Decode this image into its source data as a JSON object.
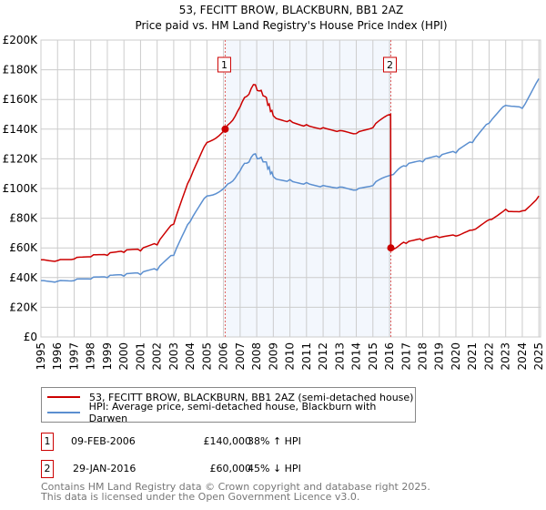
{
  "title": "53, FECITT BROW, BLACKBURN, BB1 2AZ",
  "subtitle": "Price paid vs. HM Land Registry's House Price Index (HPI)",
  "chart_data": {
    "type": "line",
    "title": "53, FECITT BROW, BLACKBURN, BB1 2AZ",
    "subtitle": "Price paid vs. HM Land Registry's House Price Index (HPI)",
    "xlim": [
      1995,
      2025.1
    ],
    "ylim": [
      0,
      200000
    ],
    "y_ticks": [
      {
        "v": 0,
        "l": "£0"
      },
      {
        "v": 20000,
        "l": "£20K"
      },
      {
        "v": 40000,
        "l": "£40K"
      },
      {
        "v": 60000,
        "l": "£60K"
      },
      {
        "v": 80000,
        "l": "£80K"
      },
      {
        "v": 100000,
        "l": "£100K"
      },
      {
        "v": 120000,
        "l": "£120K"
      },
      {
        "v": 140000,
        "l": "£140K"
      },
      {
        "v": 160000,
        "l": "£160K"
      },
      {
        "v": 180000,
        "l": "£180K"
      },
      {
        "v": 200000,
        "l": "£200K"
      }
    ],
    "x_ticks": [
      "1995",
      "1996",
      "1997",
      "1998",
      "1999",
      "2000",
      "2001",
      "2002",
      "2003",
      "2004",
      "2005",
      "2006",
      "2007",
      "2008",
      "2009",
      "2010",
      "2011",
      "2012",
      "2013",
      "2014",
      "2015",
      "2016",
      "2017",
      "2018",
      "2019",
      "2020",
      "2021",
      "2022",
      "2023",
      "2024",
      "2025"
    ],
    "grid": true,
    "series": [
      {
        "name": "53, FECITT BROW, BLACKBURN, BB1 2AZ (semi-detached house)",
        "color": "#cc0000",
        "x": [
          1995,
          1996,
          1997,
          1998,
          1999,
          2000,
          2001,
          2002,
          2003,
          2004,
          2005,
          2006.1,
          2007,
          2007.8,
          2008.5,
          2009,
          2010,
          2011,
          2012,
          2013,
          2014,
          2015,
          2016.07,
          2016.08,
          2017,
          2018,
          2019,
          2020,
          2021,
          2022,
          2023,
          2024,
          2025
        ],
        "y": [
          52000,
          51500,
          52500,
          54000,
          55000,
          57000,
          58000,
          62000,
          76000,
          107000,
          131000,
          140000,
          155000,
          170000,
          162000,
          149000,
          146000,
          143000,
          141000,
          139000,
          137000,
          141000,
          150000,
          60000,
          63000,
          65000,
          67000,
          68000,
          72000,
          79000,
          86000,
          85000,
          95000
        ]
      },
      {
        "name": "HPI: Average price, semi-detached house, Blackburn with Darwen",
        "color": "#5b8fd0",
        "x": [
          1995,
          1996,
          1997,
          1998,
          1999,
          2000,
          2001,
          2002,
          2003,
          2004,
          2005,
          2006.1,
          2007,
          2007.8,
          2008.5,
          2009,
          2010,
          2011,
          2012,
          2013,
          2014,
          2015,
          2016.08,
          2017,
          2018,
          2019,
          2020,
          2021,
          2022,
          2023,
          2024,
          2025
        ],
        "y": [
          38000,
          37500,
          38000,
          39000,
          40000,
          41000,
          42000,
          45000,
          55000,
          78000,
          95000,
          101000,
          112000,
          123000,
          118000,
          108000,
          106000,
          104000,
          102000,
          101000,
          99000,
          102000,
          109000,
          115000,
          118000,
          121000,
          124000,
          131000,
          144000,
          156000,
          154000,
          174000
        ]
      }
    ],
    "annotations": [
      {
        "label": "1",
        "x": 2006.1,
        "y": 140000
      },
      {
        "label": "2",
        "x": 2016.08,
        "y": 60000
      }
    ],
    "shaded_range": [
      2006.1,
      2016.08
    ],
    "legend_position": "bottom"
  },
  "legend": {
    "property": "53, FECITT BROW, BLACKBURN, BB1 2AZ (semi-detached house)",
    "hpi": "HPI: Average price, semi-detached house, Blackburn with Darwen"
  },
  "transactions": [
    {
      "num": "1",
      "date": "09-FEB-2006",
      "price": "£140,000",
      "delta": "38% ↑ HPI"
    },
    {
      "num": "2",
      "date": "29-JAN-2016",
      "price": "£60,000",
      "delta": "45% ↓ HPI"
    }
  ],
  "footer": {
    "line1": "Contains HM Land Registry data © Crown copyright and database right 2025.",
    "line2": "This data is licensed under the Open Government Licence v3.0."
  }
}
